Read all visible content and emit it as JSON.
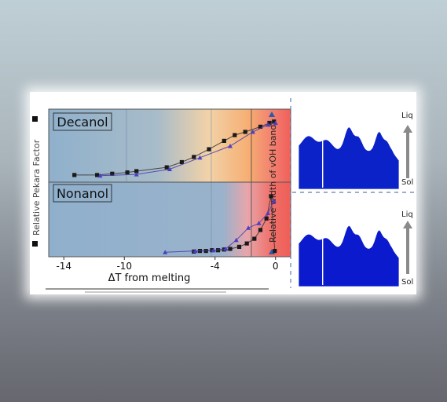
{
  "colors": {
    "solid_blue": "#8fb0cc",
    "mid_orange": "#f0c080",
    "melt_red": "#f0605a",
    "series_pekara": "#3a3a3a",
    "series_voh": "#4a3fb0",
    "arrow_grey": "#8a8a8a"
  },
  "left_axis_label": "Relative Pekara Factor",
  "right_axis_label": "Relative width of vOH band",
  "x_axis_label": "ΔT from melting",
  "x_tick_labels": [
    "-14",
    "-10",
    "-4",
    "0"
  ],
  "stack_arrow_top": "Liq",
  "stack_arrow_bottom": "Sol",
  "chart_data": [
    {
      "type": "line",
      "title": "Decanol",
      "xlabel": "ΔT from melting",
      "xlim": [
        -15,
        1
      ],
      "ylim": [
        0,
        1
      ],
      "series": [
        {
          "marker": "square",
          "x": [
            -13.3,
            -11.8,
            -10.8,
            -9.8,
            -9.2,
            -7.2,
            -6.2,
            -5.4,
            -4.4,
            -3.4,
            -2.7,
            -2.0,
            -1.0,
            -0.4,
            -0.1
          ],
          "y": [
            0.05,
            0.05,
            0.07,
            0.09,
            0.11,
            0.17,
            0.25,
            0.33,
            0.45,
            0.58,
            0.67,
            0.72,
            0.8,
            0.86,
            0.88
          ]
        },
        {
          "marker": "triangle",
          "x": [
            -11.6,
            -9.2,
            -7.0,
            -5.0,
            -3.0,
            -1.5,
            -0.5,
            0.0
          ],
          "y": [
            0.04,
            0.06,
            0.14,
            0.32,
            0.5,
            0.72,
            0.83,
            0.86
          ]
        }
      ]
    },
    {
      "type": "line",
      "title": "Nonanol",
      "xlabel": "ΔT from melting",
      "xlim": [
        -15,
        1
      ],
      "ylim": [
        0,
        1
      ],
      "series": [
        {
          "marker": "square",
          "x": [
            -5.4,
            -5.0,
            -4.6,
            -4.2,
            -3.8,
            -3.4,
            -3.0,
            -2.4,
            -1.9,
            -1.4,
            -1.0,
            -0.6,
            -0.3,
            -0.05
          ],
          "y": [
            0.03,
            0.04,
            0.04,
            0.05,
            0.05,
            0.06,
            0.07,
            0.1,
            0.15,
            0.22,
            0.35,
            0.52,
            0.85,
            0.04
          ]
        },
        {
          "marker": "triangle",
          "x": [
            -7.3,
            -5.3,
            -4.1,
            -3.3,
            -2.6,
            -1.8,
            -1.1,
            -0.5,
            -0.1
          ],
          "y": [
            0.02,
            0.04,
            0.05,
            0.07,
            0.2,
            0.38,
            0.45,
            0.6,
            0.78
          ]
        }
      ]
    }
  ]
}
